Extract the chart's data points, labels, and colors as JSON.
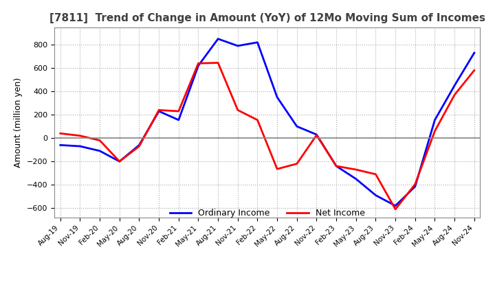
{
  "title": "[7811]  Trend of Change in Amount (YoY) of 12Mo Moving Sum of Incomes",
  "ylabel": "Amount (million yen)",
  "ylim": [
    -680,
    950
  ],
  "yticks": [
    -600,
    -400,
    -200,
    0,
    200,
    400,
    600,
    800
  ],
  "x_labels": [
    "Aug-19",
    "Nov-19",
    "Feb-20",
    "May-20",
    "Aug-20",
    "Nov-20",
    "Feb-21",
    "May-21",
    "Aug-21",
    "Nov-21",
    "Feb-22",
    "May-22",
    "Aug-22",
    "Nov-22",
    "Feb-23",
    "May-23",
    "Aug-23",
    "Nov-23",
    "Feb-24",
    "May-24",
    "Aug-24",
    "Nov-24"
  ],
  "ordinary_income": [
    -60,
    -70,
    -110,
    -200,
    -60,
    230,
    155,
    620,
    850,
    790,
    820,
    350,
    100,
    30,
    -240,
    -350,
    -490,
    -580,
    -415,
    155,
    450,
    730
  ],
  "net_income": [
    40,
    20,
    -20,
    -200,
    -70,
    240,
    230,
    640,
    645,
    240,
    155,
    -265,
    -220,
    25,
    -240,
    -270,
    -310,
    -610,
    -395,
    60,
    370,
    580
  ],
  "ordinary_income_color": "#0000ff",
  "net_income_color": "#ff0000",
  "line_width": 2.0,
  "background_color": "#ffffff",
  "grid_color": "#aaaaaa",
  "title_color": "#404040",
  "zero_line_color": "#888888"
}
